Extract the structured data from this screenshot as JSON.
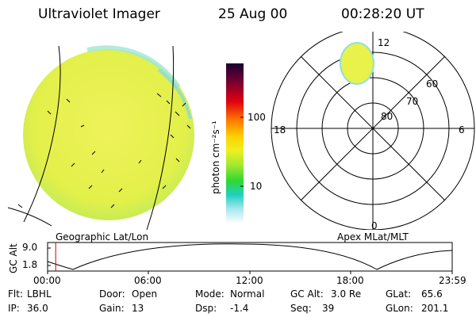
{
  "header": {
    "instrument": "Ultraviolet Imager",
    "date": "25 Aug 00",
    "time": "00:28:20 UT"
  },
  "colorbar": {
    "unit_label": "photon cm⁻²s⁻¹",
    "ticks": [
      "100",
      "10"
    ]
  },
  "polar": {
    "mlt_labels": {
      "top": "12",
      "left": "18",
      "right": "6",
      "bottom": "0"
    },
    "lat_labels": [
      "60",
      "70",
      "80"
    ]
  },
  "labels": {
    "geographic": "Geographic Lat/Lon",
    "apex": "Apex MLat/MLT"
  },
  "altitude_plot": {
    "ylabel": "GC Alt",
    "y_ticks": [
      "9.0",
      "1.8"
    ],
    "x_ticks": [
      "00:00",
      "06:00",
      "12:00",
      "18:00",
      "23:59"
    ],
    "current_time_fraction": 0.02
  },
  "info": {
    "flt_label": "Flt:",
    "flt_value": "LBHL",
    "ip_label": "IP:",
    "ip_value": "36.0",
    "door_label": "Door:",
    "door_value": "Open",
    "gain_label": "Gain:",
    "gain_value": "13",
    "mode_label": "Mode:",
    "mode_value": "Normal",
    "dsp_label": "Dsp:",
    "dsp_value": "-1.4",
    "gcalt_label": "GC Alt:",
    "gcalt_value": "3.0 Re",
    "seq_label": "Seq:",
    "seq_value": "39",
    "glat_label": "GLat:",
    "glat_value": "65.6",
    "glon_label": "GLon:",
    "glon_value": "201.1"
  },
  "colors": {
    "earth_fill": "#e8f24a",
    "limb": "#7fe8d0",
    "marker": "#cc0000"
  }
}
